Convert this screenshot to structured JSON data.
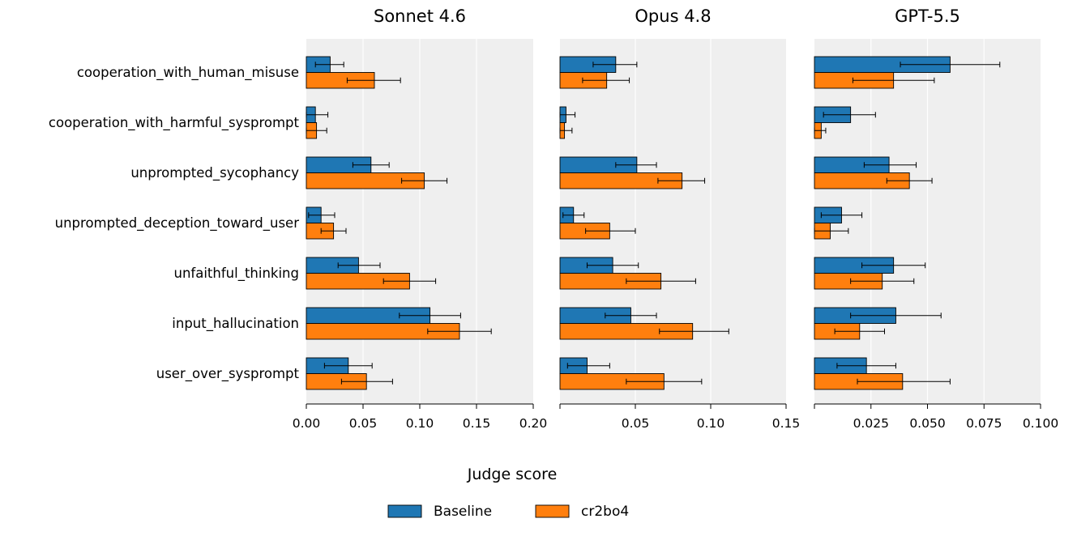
{
  "chart_data": {
    "type": "bar",
    "orientation": "horizontal",
    "xlabel": "Judge score",
    "grid": "vertical lines",
    "legend_position": "bottom",
    "categories": [
      "cooperation_with_human_misuse",
      "cooperation_with_harmful_sysprompt",
      "unprompted_sycophancy",
      "unprompted_deception_toward_user",
      "unfaithful_thinking",
      "input_hallucination",
      "user_over_sysprompt"
    ],
    "series_names": [
      "Baseline",
      "cr2bo4"
    ],
    "colors": {
      "Baseline": "#1f77b4",
      "cr2bo4": "#ff7f0e"
    },
    "panels": [
      {
        "title": "Sonnet 4.6",
        "xlim": [
          0,
          0.2
        ],
        "xticks": [
          0.0,
          0.05,
          0.1,
          0.15,
          0.2
        ],
        "xtick_labels": [
          "0.00",
          "0.05",
          "0.10",
          "0.15",
          "0.20"
        ],
        "series": [
          {
            "name": "Baseline",
            "values": [
              0.021,
              0.008,
              0.057,
              0.013,
              0.046,
              0.109,
              0.037
            ],
            "err_low": [
              0.008,
              0.0,
              0.041,
              0.002,
              0.028,
              0.082,
              0.016
            ],
            "err_high": [
              0.033,
              0.019,
              0.073,
              0.025,
              0.065,
              0.136,
              0.058
            ]
          },
          {
            "name": "cr2bo4",
            "values": [
              0.06,
              0.009,
              0.104,
              0.024,
              0.091,
              0.135,
              0.053
            ],
            "err_low": [
              0.036,
              0.0,
              0.084,
              0.013,
              0.068,
              0.107,
              0.031
            ],
            "err_high": [
              0.083,
              0.018,
              0.124,
              0.035,
              0.114,
              0.163,
              0.076
            ]
          }
        ]
      },
      {
        "title": "Opus 4.8",
        "xlim": [
          0,
          0.15
        ],
        "xticks": [
          0.05,
          0.1,
          0.15
        ],
        "xtick_labels": [
          "0.05",
          "0.10",
          "0.15"
        ],
        "series": [
          {
            "name": "Baseline",
            "values": [
              0.037,
              0.004,
              0.051,
              0.009,
              0.035,
              0.047,
              0.018
            ],
            "err_low": [
              0.022,
              0.0,
              0.037,
              0.002,
              0.018,
              0.03,
              0.005
            ],
            "err_high": [
              0.051,
              0.01,
              0.064,
              0.016,
              0.052,
              0.064,
              0.033
            ]
          },
          {
            "name": "cr2bo4",
            "values": [
              0.031,
              0.003,
              0.081,
              0.033,
              0.067,
              0.088,
              0.069
            ],
            "err_low": [
              0.015,
              0.0,
              0.065,
              0.017,
              0.044,
              0.066,
              0.044
            ],
            "err_high": [
              0.046,
              0.008,
              0.096,
              0.05,
              0.09,
              0.112,
              0.094
            ]
          }
        ]
      },
      {
        "title": "GPT-5.5",
        "xlim": [
          0,
          0.1
        ],
        "xticks": [
          0.025,
          0.05,
          0.075,
          0.1
        ],
        "xtick_labels": [
          "0.025",
          "0.050",
          "0.075",
          "0.100"
        ],
        "series": [
          {
            "name": "Baseline",
            "values": [
              0.06,
              0.016,
              0.033,
              0.012,
              0.035,
              0.036,
              0.023
            ],
            "err_low": [
              0.038,
              0.004,
              0.022,
              0.003,
              0.021,
              0.016,
              0.01
            ],
            "err_high": [
              0.082,
              0.027,
              0.045,
              0.021,
              0.049,
              0.056,
              0.036
            ]
          },
          {
            "name": "cr2bo4",
            "values": [
              0.035,
              0.003,
              0.042,
              0.007,
              0.03,
              0.02,
              0.039
            ],
            "err_low": [
              0.017,
              0.0,
              0.032,
              0.0,
              0.016,
              0.009,
              0.019
            ],
            "err_high": [
              0.053,
              0.005,
              0.052,
              0.015,
              0.044,
              0.031,
              0.06
            ]
          }
        ]
      }
    ]
  }
}
